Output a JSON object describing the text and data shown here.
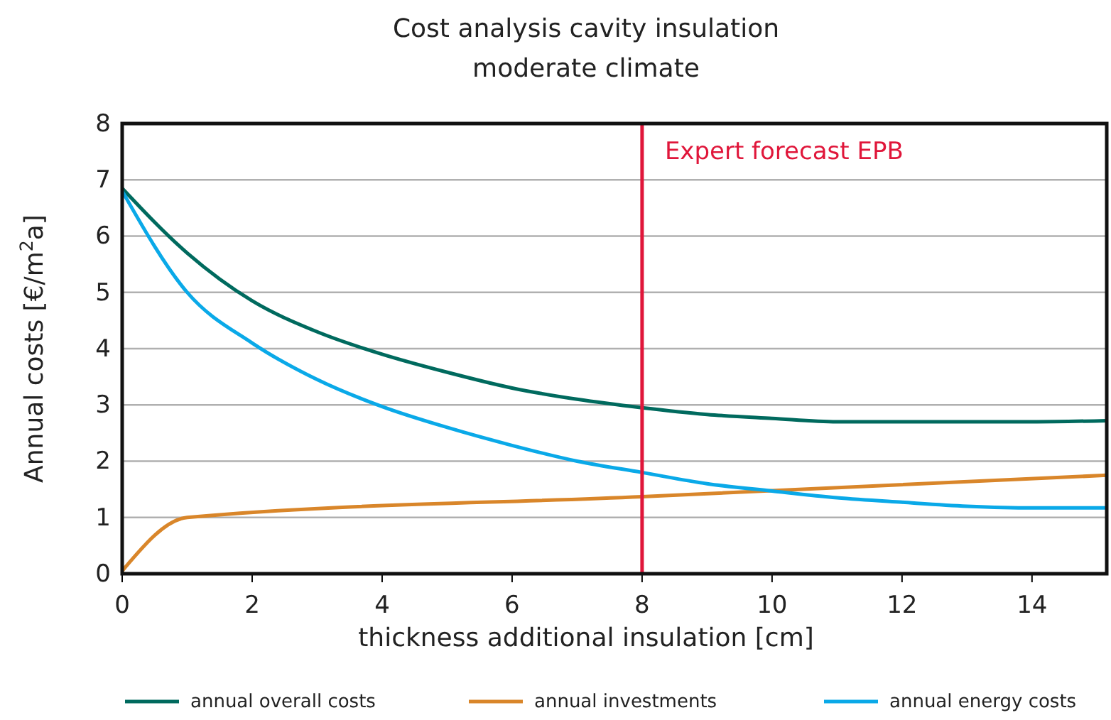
{
  "chart_data": {
    "type": "line",
    "title": "Cost analysis cavity insulation",
    "subtitle": "moderate climate",
    "xlabel": "thickness additional insulation [cm]",
    "ylabel": "Annual costs [€/m$^{2}$a]",
    "xlim": [
      0,
      15.15
    ],
    "xticks": [
      0,
      2,
      4,
      6,
      8,
      10,
      12,
      14
    ],
    "ylim": [
      0,
      8
    ],
    "yticks": [
      0,
      1,
      2,
      3,
      4,
      5,
      6,
      7,
      8
    ],
    "grid": "y",
    "legend": "bottom",
    "marker": "none",
    "line_style": "solid",
    "series": [
      {
        "name": "annual overall costs",
        "color": "#006a5e",
        "x": [
          0,
          1,
          2,
          3,
          4,
          5,
          6,
          7,
          8,
          9,
          10,
          11,
          12,
          13,
          14,
          15.15
        ],
        "values": [
          6.85,
          5.7,
          4.85,
          4.3,
          3.9,
          3.58,
          3.3,
          3.1,
          2.95,
          2.83,
          2.76,
          2.7,
          2.7,
          2.7,
          2.7,
          2.72
        ]
      },
      {
        "name": "annual investments",
        "color": "#d9862a",
        "x": [
          0,
          1,
          8,
          15.15
        ],
        "values": [
          0.05,
          1.0,
          1.37,
          1.75
        ]
      },
      {
        "name": "annual energy costs",
        "color": "#0aa9e8",
        "x": [
          0,
          1,
          2,
          3,
          4,
          5,
          6,
          7,
          8,
          9,
          10,
          11,
          12,
          13,
          14,
          15.15
        ],
        "values": [
          6.8,
          5.0,
          4.1,
          3.45,
          2.97,
          2.6,
          2.28,
          2.0,
          1.8,
          1.6,
          1.47,
          1.35,
          1.27,
          1.2,
          1.17,
          1.17
        ]
      }
    ],
    "ref_lines": [
      {
        "axis": "x",
        "value": 8,
        "label": "Expert forecast EPB",
        "color": "#e0163a"
      }
    ]
  }
}
